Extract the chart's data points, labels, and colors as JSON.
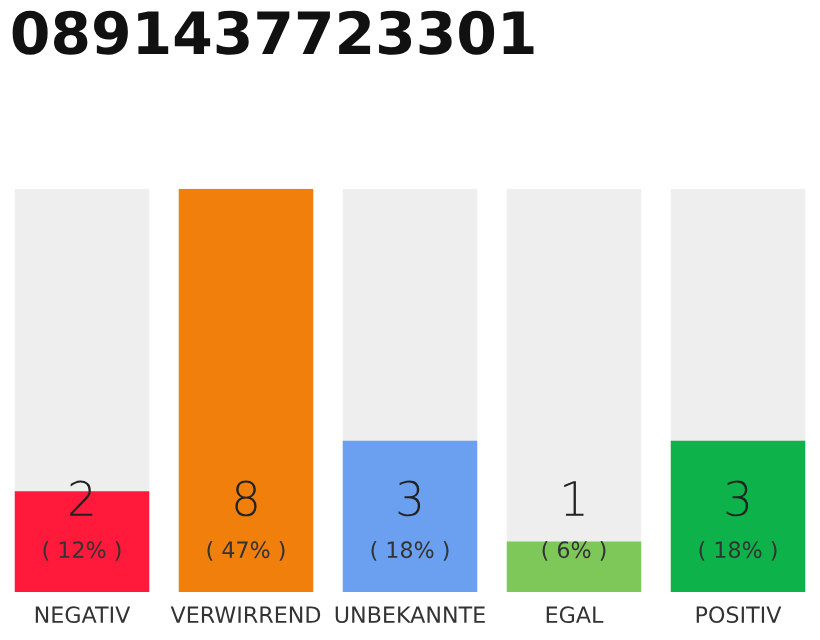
{
  "chart_data": {
    "type": "bar",
    "title": "0891437723301",
    "categories": [
      "NEGATIV",
      "VERWIRREND",
      "UNBEKANNTE",
      "EGAL",
      "POSITIV"
    ],
    "values": [
      2,
      8,
      3,
      1,
      3
    ],
    "colors": [
      "#ff1a3c",
      "#f07f0c",
      "#6aa0ef",
      "#7ec85a",
      "#0db34a"
    ],
    "value_labels": [
      "2",
      "8",
      "3",
      "1",
      "3"
    ],
    "annotations": [
      "( 12% )",
      "( 47% )",
      "( 18% )",
      "( 6% )",
      "( 18% )"
    ],
    "ylim": [
      0,
      8
    ],
    "tick_labels": "x",
    "grid": false,
    "legend": false
  }
}
